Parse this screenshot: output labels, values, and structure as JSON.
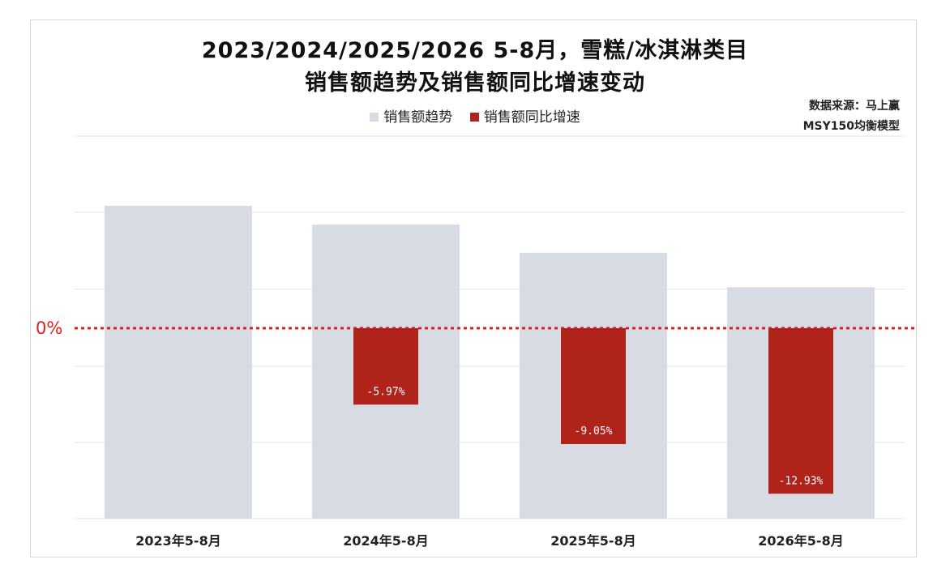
{
  "chart_data": {
    "type": "bar",
    "title_line1": "2023/2024/2025/2026 5-8月，雪糕/冰淇淋类目",
    "title_line2": "销售额趋势及销售额同比增速变动",
    "categories": [
      "2023年5-8月",
      "2024年5-8月",
      "2025年5-8月",
      "2026年5-8月"
    ],
    "series": [
      {
        "name": "销售额趋势",
        "color": "#d7dbe4",
        "values": [
          1.0,
          0.94,
          0.85,
          0.74
        ]
      },
      {
        "name": "销售额同比增速",
        "color": "#b0231b",
        "values": [
          null,
          -5.97,
          -9.05,
          -12.93
        ],
        "labels": [
          "",
          "-5.97%",
          "-9.05%",
          "-12.93%"
        ]
      }
    ],
    "zero_label": "0%",
    "source_line1": "数据来源：马上赢",
    "source_line2": "MSY150均衡模型",
    "grid": true,
    "legend_position": "top-center"
  }
}
